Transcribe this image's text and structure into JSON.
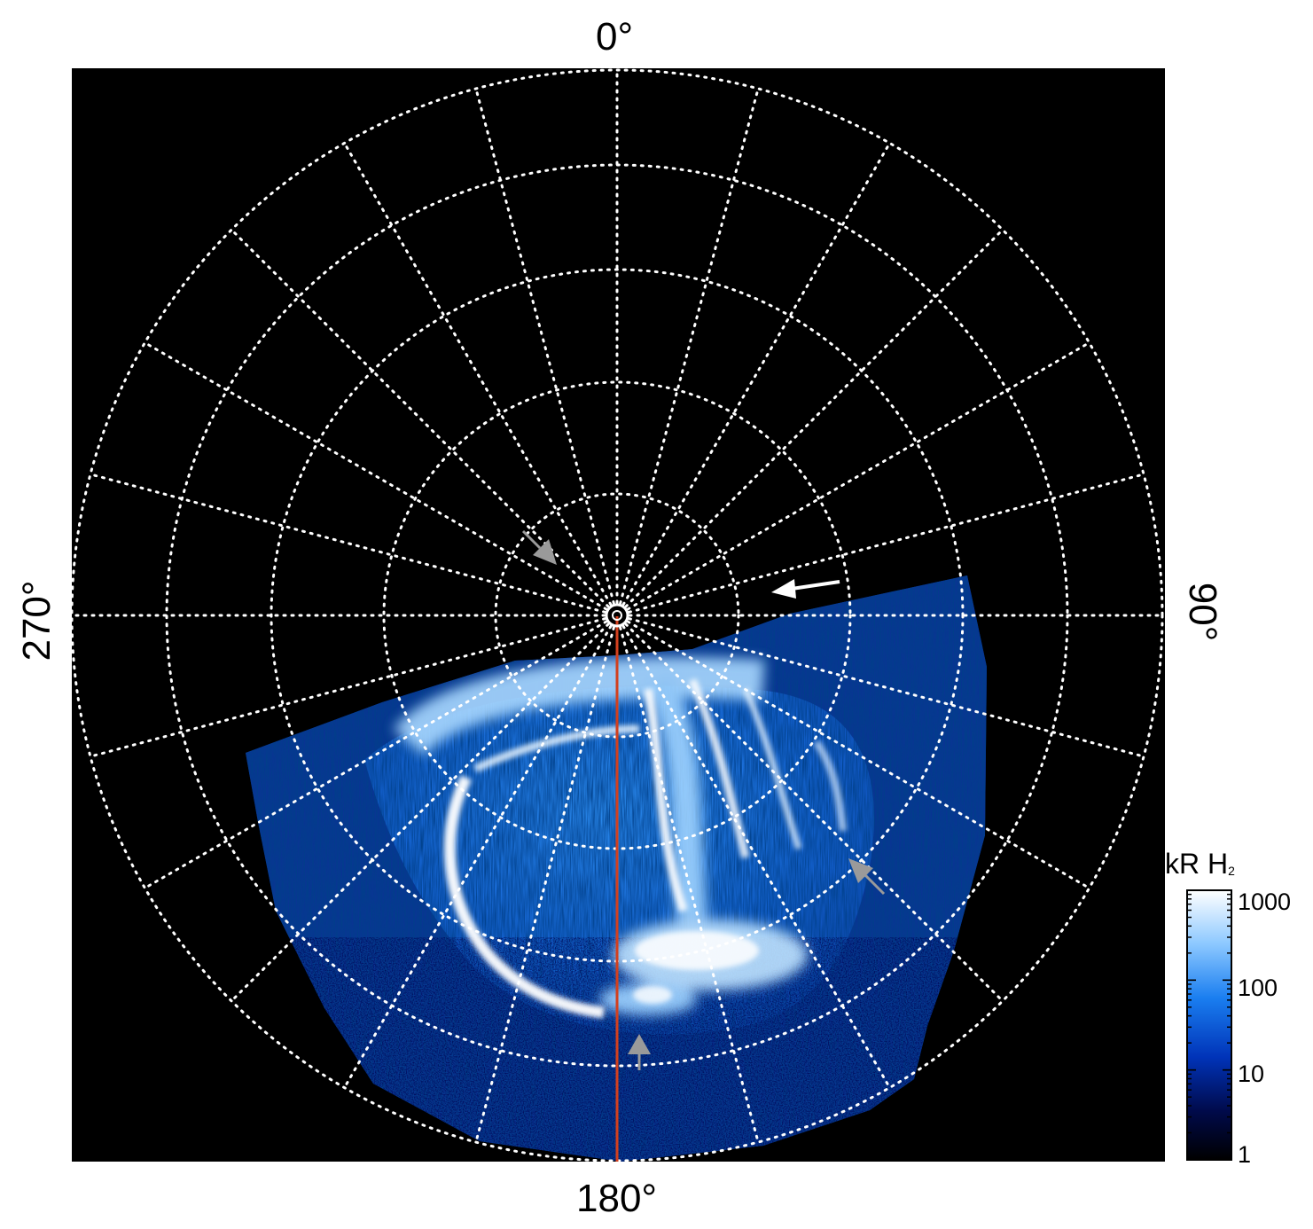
{
  "figure": {
    "longitude_labels": {
      "top": "0°",
      "right": "90°",
      "bottom": "180°",
      "left": "270°"
    },
    "colorbar": {
      "title_main": "kR H",
      "title_sub": "2",
      "ticks": [
        "1000",
        "100",
        "10",
        "1"
      ],
      "scale": "log",
      "range": [
        1,
        1000
      ]
    },
    "grid": {
      "meridian_step_deg": 15,
      "style": "dotted white"
    },
    "colors": {
      "background": "#000000",
      "grid": "#ffffff",
      "meridian_marker": "#d2401e",
      "arrow_white": "#ffffff",
      "arrow_gray": "#9a9a9a",
      "colormap": [
        "#000000",
        "#000a4a",
        "#0033b8",
        "#1a7ef0",
        "#8cc8ff",
        "#ffffff"
      ]
    },
    "annotations": [
      "arrow-white",
      "arrow-gray",
      "arrow-gray",
      "arrow-gray"
    ]
  }
}
